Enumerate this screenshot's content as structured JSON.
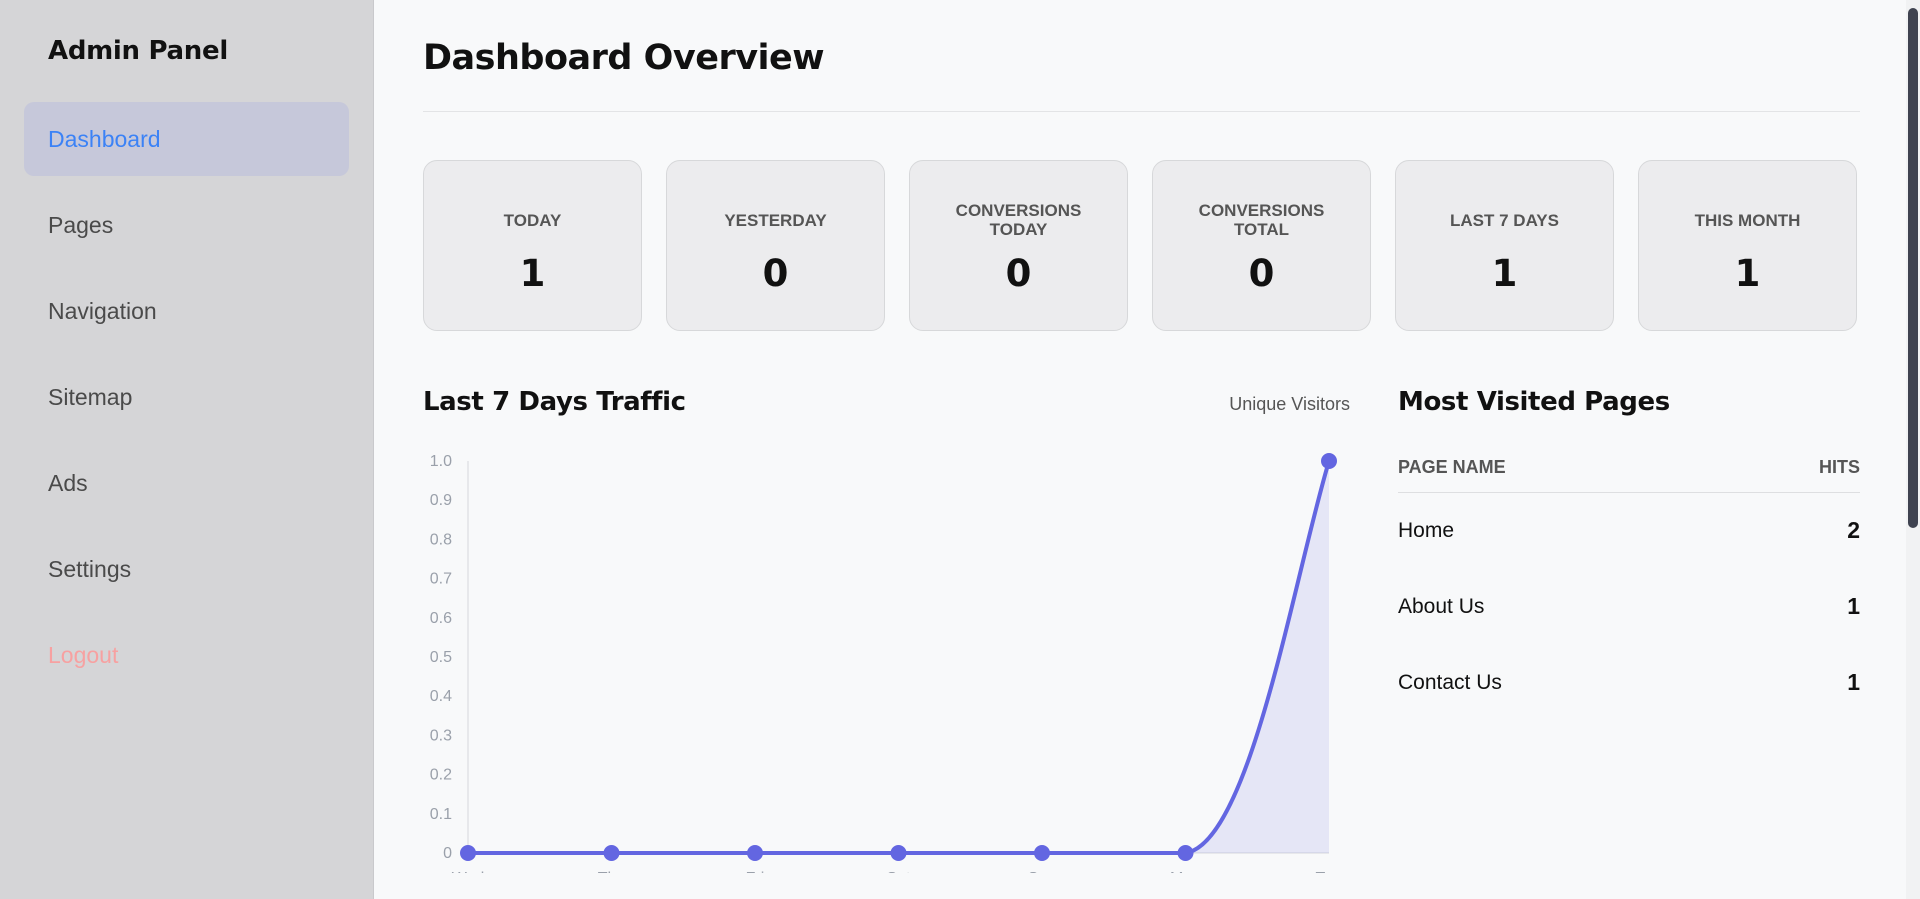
{
  "sidebar": {
    "brand": "Admin Panel",
    "items": [
      {
        "label": "Dashboard",
        "active": true
      },
      {
        "label": "Pages"
      },
      {
        "label": "Navigation"
      },
      {
        "label": "Sitemap"
      },
      {
        "label": "Ads"
      },
      {
        "label": "Settings"
      },
      {
        "label": "Logout"
      }
    ]
  },
  "header": {
    "title": "Dashboard Overview"
  },
  "stats": [
    {
      "label": "TODAY",
      "value": "1"
    },
    {
      "label": "YESTERDAY",
      "value": "0"
    },
    {
      "label": "CONVERSIONS TODAY",
      "value": "0"
    },
    {
      "label": "CONVERSIONS TOTAL",
      "value": "0"
    },
    {
      "label": "LAST 7 DAYS",
      "value": "1"
    },
    {
      "label": "THIS MONTH",
      "value": "1"
    }
  ],
  "traffic": {
    "title": "Last 7 Days Traffic",
    "series_label": "Unique Visitors"
  },
  "chart_data": {
    "type": "line",
    "title": "Last 7 Days Traffic",
    "categories": [
      "Wed",
      "Thu",
      "Fri",
      "Sat",
      "Sun",
      "Mon",
      "Tue"
    ],
    "series": [
      {
        "name": "Unique Visitors",
        "values": [
          0,
          0,
          0,
          0,
          0,
          0,
          1
        ],
        "color": "#6366e1"
      }
    ],
    "yticks": [
      "0",
      "0.1",
      "0.2",
      "0.3",
      "0.4",
      "0.5",
      "0.6",
      "0.7",
      "0.8",
      "0.9",
      "1.0"
    ],
    "ylim": [
      0,
      1
    ],
    "fill": true,
    "grid": false
  },
  "popular": {
    "title": "Most Visited Pages",
    "columns": {
      "name": "PAGE NAME",
      "hits": "HITS"
    },
    "rows": [
      {
        "name": "Home",
        "hits": "2"
      },
      {
        "name": "About Us",
        "hits": "1"
      },
      {
        "name": "Contact Us",
        "hits": "1"
      }
    ]
  },
  "colors": {
    "accent": "#3b82f6",
    "chart": "#6366e1",
    "logout": "#f7a1a1",
    "sidebar_bg": "#d5d5d7"
  }
}
